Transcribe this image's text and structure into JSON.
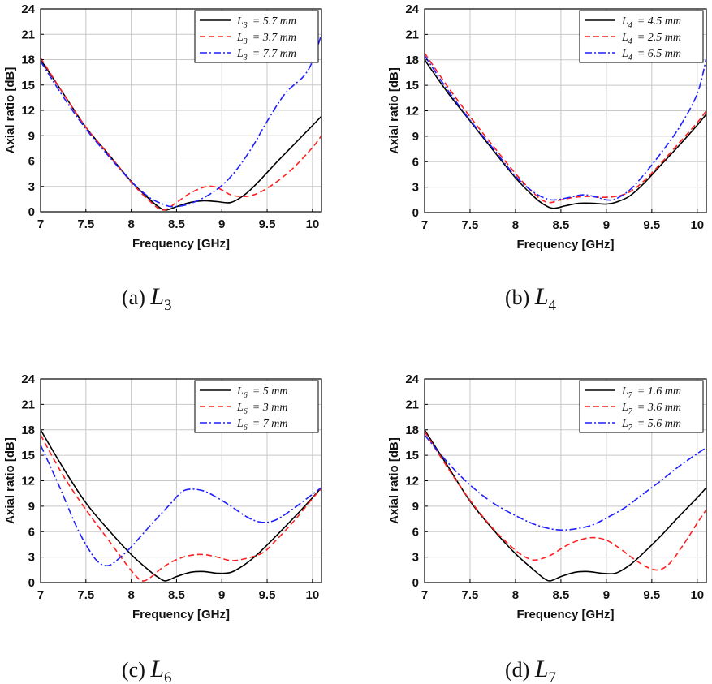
{
  "figure": {
    "colors": {
      "solid": "#000000",
      "dashed": "#ff2020",
      "dashdot": "#1f1fff",
      "grid": "#c8c8c8"
    }
  },
  "chart_data": [
    {
      "type": "line",
      "caption": {
        "tag": "(a)",
        "var": "L",
        "sub": "3"
      },
      "xlabel": "Frequency [GHz]",
      "ylabel": "Axial ratio [dB]",
      "xlim": [
        7,
        10.1
      ],
      "ylim": [
        0,
        24
      ],
      "xticks": [
        "7",
        "7.5",
        "8",
        "8.5",
        "9",
        "9.5",
        "10"
      ],
      "yticks": [
        "0",
        "3",
        "6",
        "9",
        "12",
        "15",
        "18",
        "21",
        "24"
      ],
      "grid": true,
      "legend_position": "top-right",
      "series": [
        {
          "legend_var": "L",
          "legend_sub": "3",
          "legend_value": "= 5.7 mm",
          "style": "solid",
          "x": [
            7.0,
            7.25,
            7.5,
            7.75,
            8.0,
            8.2,
            8.3,
            8.38,
            8.5,
            8.65,
            8.8,
            8.95,
            9.1,
            9.25,
            9.4,
            9.6,
            9.8,
            10.0,
            10.1
          ],
          "y": [
            18.0,
            14.0,
            10.0,
            6.8,
            3.6,
            1.5,
            0.6,
            0.2,
            0.6,
            1.1,
            1.3,
            1.2,
            1.1,
            2.0,
            3.5,
            5.8,
            8.0,
            10.2,
            11.3
          ]
        },
        {
          "legend_var": "L",
          "legend_sub": "3",
          "legend_value": "= 3.7 mm",
          "style": "dashed",
          "x": [
            7.0,
            7.25,
            7.5,
            7.75,
            8.0,
            8.2,
            8.35,
            8.5,
            8.65,
            8.8,
            8.9,
            9.0,
            9.1,
            9.25,
            9.4,
            9.6,
            9.8,
            10.0,
            10.1
          ],
          "y": [
            18.2,
            14.0,
            10.0,
            6.8,
            3.5,
            1.3,
            0.2,
            1.1,
            2.2,
            2.9,
            3.0,
            2.6,
            2.0,
            1.8,
            2.2,
            3.5,
            5.3,
            7.6,
            9.0
          ]
        },
        {
          "legend_var": "L",
          "legend_sub": "3",
          "legend_value": "= 7.7 mm",
          "style": "dashdot",
          "x": [
            7.0,
            7.25,
            7.5,
            7.75,
            8.0,
            8.2,
            8.35,
            8.45,
            8.6,
            8.75,
            8.9,
            9.05,
            9.2,
            9.35,
            9.5,
            9.7,
            9.9,
            10.0,
            10.1
          ],
          "y": [
            17.8,
            13.6,
            9.8,
            6.6,
            3.6,
            1.7,
            0.9,
            0.6,
            0.8,
            1.4,
            2.3,
            3.6,
            5.5,
            7.9,
            10.7,
            14.0,
            16.0,
            17.8,
            21.0
          ]
        }
      ]
    },
    {
      "type": "line",
      "caption": {
        "tag": "(b)",
        "var": "L",
        "sub": "4"
      },
      "xlabel": "Frequency [GHz]",
      "ylabel": "Axial ratio [dB]",
      "xlim": [
        7,
        10.1
      ],
      "ylim": [
        0,
        24
      ],
      "xticks": [
        "7",
        "7.5",
        "8",
        "8.5",
        "9",
        "9.5",
        "10"
      ],
      "yticks": [
        "0",
        "3",
        "6",
        "9",
        "12",
        "15",
        "18",
        "21",
        "24"
      ],
      "grid": true,
      "legend_position": "top-right",
      "series": [
        {
          "legend_var": "L",
          "legend_sub": "4",
          "legend_value": "= 4.5 mm",
          "style": "solid",
          "x": [
            7.0,
            7.25,
            7.5,
            7.75,
            8.0,
            8.2,
            8.32,
            8.42,
            8.55,
            8.7,
            8.85,
            9.0,
            9.1,
            9.25,
            9.4,
            9.6,
            9.8,
            10.0,
            10.1
          ],
          "y": [
            18.0,
            14.2,
            10.8,
            7.4,
            4.1,
            1.9,
            0.9,
            0.5,
            0.8,
            1.1,
            1.1,
            1.0,
            1.2,
            1.9,
            3.3,
            5.6,
            7.9,
            10.3,
            11.6
          ]
        },
        {
          "legend_var": "L",
          "legend_sub": "4",
          "legend_value": "= 2.5 mm",
          "style": "dashed",
          "x": [
            7.0,
            7.25,
            7.5,
            7.75,
            8.0,
            8.2,
            8.35,
            8.5,
            8.65,
            8.8,
            8.95,
            9.1,
            9.25,
            9.4,
            9.6,
            9.8,
            10.0,
            10.1
          ],
          "y": [
            18.8,
            14.9,
            11.3,
            7.9,
            4.6,
            2.3,
            1.2,
            1.5,
            1.8,
            1.9,
            1.8,
            1.9,
            2.4,
            3.6,
            5.8,
            8.2,
            10.6,
            12.0
          ]
        },
        {
          "legend_var": "L",
          "legend_sub": "4",
          "legend_value": "= 6.5 mm",
          "style": "dashdot",
          "x": [
            7.0,
            7.25,
            7.5,
            7.75,
            8.0,
            8.2,
            8.35,
            8.45,
            8.6,
            8.75,
            8.9,
            9.0,
            9.1,
            9.25,
            9.4,
            9.6,
            9.8,
            10.0,
            10.1
          ],
          "y": [
            18.5,
            14.5,
            10.9,
            7.6,
            4.3,
            2.4,
            1.6,
            1.5,
            1.8,
            2.1,
            1.8,
            1.5,
            1.6,
            2.6,
            4.3,
            7.0,
            10.0,
            14.0,
            18.2
          ]
        }
      ]
    },
    {
      "type": "line",
      "caption": {
        "tag": "(c)",
        "var": "L",
        "sub": "6"
      },
      "xlabel": "Frequency [GHz]",
      "ylabel": "Axial ratio [dB]",
      "xlim": [
        7,
        10.1
      ],
      "ylim": [
        0,
        24
      ],
      "xticks": [
        "7",
        "7.5",
        "8",
        "8.5",
        "9",
        "9.5",
        "10"
      ],
      "yticks": [
        "0",
        "3",
        "6",
        "9",
        "12",
        "15",
        "18",
        "21",
        "24"
      ],
      "grid": true,
      "legend_position": "top-right",
      "series": [
        {
          "legend_var": "L",
          "legend_sub": "6",
          "legend_value": "= 5 mm",
          "style": "solid",
          "x": [
            7.0,
            7.25,
            7.5,
            7.75,
            8.0,
            8.2,
            8.3,
            8.38,
            8.5,
            8.65,
            8.8,
            8.95,
            9.1,
            9.25,
            9.4,
            9.6,
            9.8,
            10.0,
            10.1
          ],
          "y": [
            18.0,
            13.5,
            9.4,
            6.2,
            3.3,
            1.4,
            0.6,
            0.2,
            0.7,
            1.2,
            1.3,
            1.1,
            1.2,
            2.1,
            3.4,
            5.5,
            7.7,
            10.0,
            11.2
          ]
        },
        {
          "legend_var": "L",
          "legend_sub": "6",
          "legend_value": "= 3 mm",
          "style": "dashed",
          "x": [
            7.0,
            7.25,
            7.5,
            7.75,
            7.95,
            8.05,
            8.12,
            8.2,
            8.35,
            8.5,
            8.65,
            8.8,
            8.95,
            9.1,
            9.25,
            9.45,
            9.6,
            9.8,
            10.0,
            10.1
          ],
          "y": [
            17.4,
            12.6,
            8.6,
            5.0,
            2.1,
            0.8,
            0.2,
            0.5,
            1.8,
            2.7,
            3.2,
            3.3,
            3.0,
            2.6,
            2.8,
            3.5,
            5.0,
            7.3,
            9.9,
            11.1
          ]
        },
        {
          "legend_var": "L",
          "legend_sub": "6",
          "legend_value": "= 7 mm",
          "style": "dashdot",
          "x": [
            7.0,
            7.2,
            7.4,
            7.55,
            7.65,
            7.75,
            7.85,
            8.0,
            8.2,
            8.4,
            8.55,
            8.65,
            8.8,
            8.95,
            9.1,
            9.3,
            9.45,
            9.6,
            9.8,
            10.0,
            10.1
          ],
          "y": [
            16.2,
            11.5,
            6.5,
            3.6,
            2.3,
            2.0,
            2.7,
            4.2,
            6.6,
            8.9,
            10.6,
            11.0,
            10.8,
            10.0,
            9.0,
            7.6,
            7.1,
            7.4,
            8.8,
            10.4,
            11.2
          ]
        }
      ]
    },
    {
      "type": "line",
      "caption": {
        "tag": "(d)",
        "var": "L",
        "sub": "7"
      },
      "xlabel": "Frequency [GHz]",
      "ylabel": "Axial ratio [dB]",
      "xlim": [
        7,
        10.1
      ],
      "ylim": [
        0,
        24
      ],
      "xticks": [
        "7",
        "7.5",
        "8",
        "8.5",
        "9",
        "9.5",
        "10"
      ],
      "yticks": [
        "0",
        "3",
        "6",
        "9",
        "12",
        "15",
        "18",
        "21",
        "24"
      ],
      "grid": true,
      "legend_position": "top-right",
      "series": [
        {
          "legend_var": "L",
          "legend_sub": "7",
          "legend_value": "= 1.6 mm",
          "style": "solid",
          "x": [
            7.0,
            7.25,
            7.5,
            7.75,
            8.0,
            8.2,
            8.3,
            8.38,
            8.5,
            8.65,
            8.8,
            8.95,
            9.1,
            9.25,
            9.4,
            9.6,
            9.8,
            10.0,
            10.1
          ],
          "y": [
            18.0,
            13.8,
            9.6,
            6.3,
            3.4,
            1.5,
            0.6,
            0.2,
            0.7,
            1.2,
            1.3,
            1.1,
            1.1,
            2.0,
            3.4,
            5.5,
            7.8,
            10.0,
            11.2
          ]
        },
        {
          "legend_var": "L",
          "legend_sub": "7",
          "legend_value": "= 3.6 mm",
          "style": "dashed",
          "x": [
            7.0,
            7.25,
            7.5,
            7.75,
            8.0,
            8.15,
            8.25,
            8.4,
            8.55,
            8.7,
            8.85,
            9.0,
            9.15,
            9.3,
            9.45,
            9.58,
            9.7,
            9.85,
            10.0,
            10.1
          ],
          "y": [
            17.8,
            13.6,
            9.7,
            6.4,
            3.8,
            2.8,
            2.7,
            3.3,
            4.3,
            5.0,
            5.3,
            5.0,
            4.0,
            2.8,
            1.8,
            1.5,
            2.3,
            4.5,
            7.0,
            8.6
          ]
        },
        {
          "legend_var": "L",
          "legend_sub": "7",
          "legend_value": "= 5.6 mm",
          "style": "dashdot",
          "x": [
            7.0,
            7.25,
            7.5,
            7.75,
            8.0,
            8.2,
            8.4,
            8.55,
            8.7,
            8.85,
            9.0,
            9.2,
            9.4,
            9.6,
            9.8,
            10.0,
            10.1
          ],
          "y": [
            17.4,
            14.2,
            11.5,
            9.4,
            7.9,
            6.9,
            6.3,
            6.2,
            6.4,
            6.8,
            7.6,
            8.8,
            10.4,
            12.0,
            13.7,
            15.2,
            15.9
          ]
        }
      ]
    }
  ]
}
